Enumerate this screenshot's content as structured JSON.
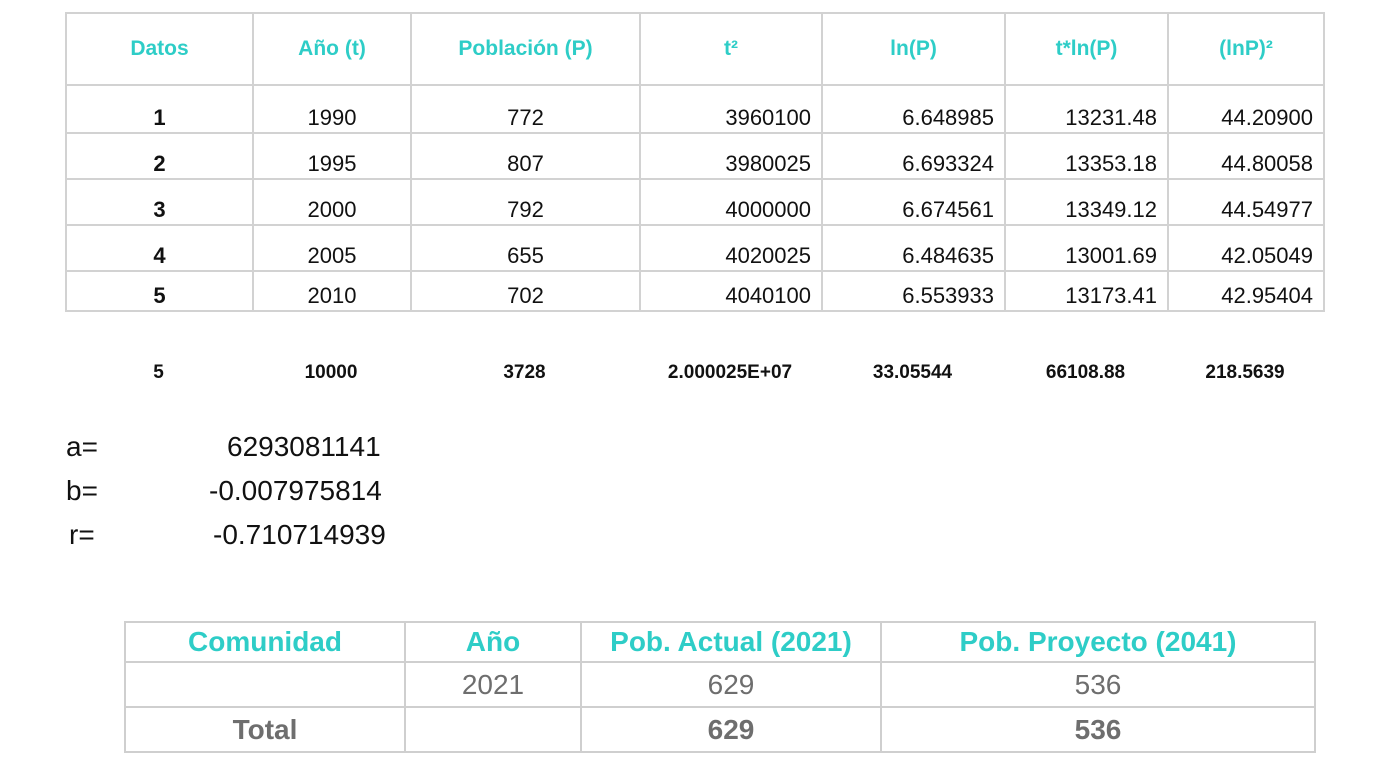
{
  "regression_table": {
    "headers": [
      "Datos",
      "Año (t)",
      "Población (P)",
      "t²",
      "ln(P)",
      "t*ln(P)",
      "(lnP)²"
    ],
    "rows": [
      [
        "1",
        "1990",
        "772",
        "3960100",
        "6.648985",
        "13231.48",
        "44.20900"
      ],
      [
        "2",
        "1995",
        "807",
        "3980025",
        "6.693324",
        "13353.18",
        "44.80058"
      ],
      [
        "3",
        "2000",
        "792",
        "4000000",
        "6.674561",
        "13349.12",
        "44.54977"
      ],
      [
        "4",
        "2005",
        "655",
        "4020025",
        "6.484635",
        "13001.69",
        "42.05049"
      ],
      [
        "5",
        "2010",
        "702",
        "4040100",
        "6.553933",
        "13173.41",
        "42.95404"
      ]
    ]
  },
  "sums": [
    "5",
    "10000",
    "3728",
    "2.000025E+07",
    "33.05544",
    "66108.88",
    "218.5639"
  ],
  "coefficients": {
    "a_label": "a=",
    "a_value": "6293081141",
    "b_label": "b=",
    "b_value": "-0.007975814",
    "r_label": "r=",
    "r_value": "-0.710714939"
  },
  "projection_table": {
    "headers": [
      "Comunidad",
      "Año",
      "Pob. Actual (2021)",
      "Pob. Proyecto (2041)"
    ],
    "row": [
      "",
      "2021",
      "629",
      "536"
    ],
    "total": [
      "Total",
      "",
      "629",
      "536"
    ]
  },
  "colors": {
    "header_teal": "#2ecdc7",
    "grid_gray": "#d2d2d2",
    "value_gray": "#6e6e6e"
  }
}
